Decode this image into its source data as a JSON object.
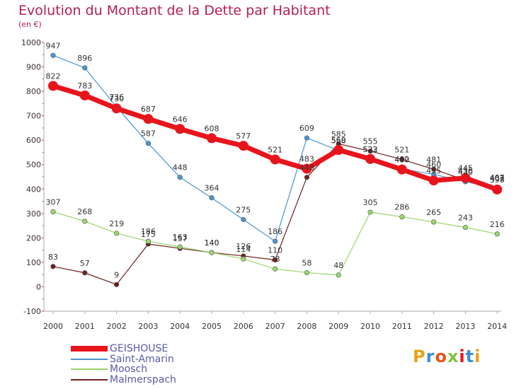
{
  "chart_data": {
    "type": "line",
    "title": "Evolution du Montant de la Dette par Habitant",
    "subtitle": "(en €)",
    "x": [
      "2000",
      "2001",
      "2002",
      "2003",
      "2004",
      "2005",
      "2006",
      "2007",
      "2008",
      "2009",
      "2010",
      "2011",
      "2012",
      "2013",
      "2014"
    ],
    "yticks": [
      "-100",
      "0",
      "100",
      "200",
      "300",
      "400",
      "500",
      "600",
      "700",
      "800",
      "900",
      "1000"
    ],
    "ylim": [
      -100,
      1000
    ],
    "grid": false,
    "legend_placement": "bottom-left",
    "series": [
      {
        "name": "GEISHOUSE",
        "color": "#e8141c",
        "values": [
          822,
          783,
          730,
          687,
          646,
          608,
          577,
          521,
          483,
          560,
          523,
          480,
          435,
          445,
          398
        ]
      },
      {
        "name": "Saint-Amarin",
        "color": "#4a96d2",
        "values": [
          947,
          896,
          736,
          587,
          448,
          364,
          275,
          186,
          609,
          558,
          522,
          482,
          460,
          430,
          403
        ]
      },
      {
        "name": "Moosch",
        "color": "#99d66c",
        "values": [
          307,
          268,
          219,
          186,
          163,
          140,
          114,
          73,
          58,
          48,
          305,
          286,
          265,
          243,
          216
        ]
      },
      {
        "name": "Malmerspach",
        "color": "#6d1f1f",
        "values": [
          83,
          57,
          9,
          175,
          157,
          140,
          126,
          110,
          448,
          585,
          555,
          521,
          481,
          436,
          407
        ]
      }
    ]
  },
  "logo": {
    "text": "Proxiti"
  }
}
